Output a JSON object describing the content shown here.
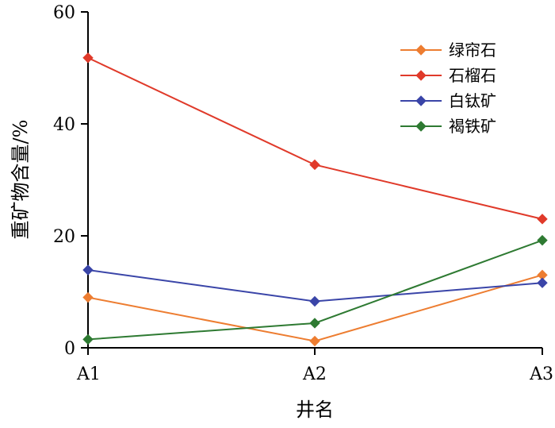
{
  "chart_data": {
    "type": "line",
    "title": "",
    "xlabel": "井名",
    "ylabel": "重矿物含量/%",
    "categories": [
      "A1",
      "A2",
      "A3"
    ],
    "ylim": [
      0,
      60
    ],
    "yticks": [
      0,
      20,
      40,
      60
    ],
    "grid": false,
    "legend_position": "top-right",
    "marker": "diamond",
    "series": [
      {
        "name": "绿帘石",
        "color": "#ED7D31",
        "values": [
          9.0,
          1.2,
          13.0
        ]
      },
      {
        "name": "石榴石",
        "color": "#E03A2A",
        "values": [
          51.8,
          32.7,
          23.0
        ]
      },
      {
        "name": "白钛矿",
        "color": "#3A45A8",
        "values": [
          13.9,
          8.3,
          11.6
        ]
      },
      {
        "name": "褐铁矿",
        "color": "#2E7A32",
        "values": [
          1.5,
          4.4,
          19.2
        ]
      }
    ]
  }
}
